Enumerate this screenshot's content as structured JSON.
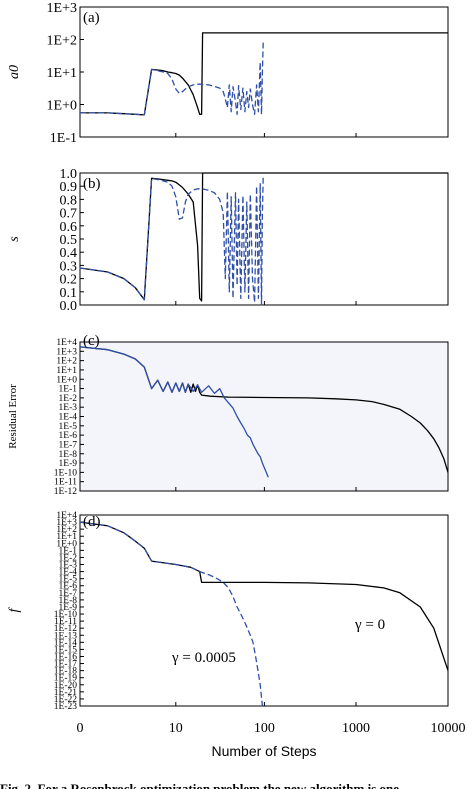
{
  "colors": {
    "black_series": "#000000",
    "blue_series": "#2f4fa8",
    "c_background": "#f4f5fb"
  },
  "caption": "Fig. 2.  For a Rosenbrock optimization problem the new algorithm is one",
  "chart_data": [
    {
      "type": "line",
      "panel_label": "(a)",
      "ylabel": "a0",
      "yscale": "log",
      "yticks": [
        "1E+3",
        "1E+2",
        "1E+1",
        "1E+0",
        "1E-1"
      ],
      "ylim": [
        0.1,
        1000
      ],
      "xscale": "log1p",
      "xlim": [
        0,
        10000
      ],
      "series": [
        {
          "color": "black",
          "dash": "solid",
          "x": [
            0,
            1,
            2,
            3,
            4,
            5,
            6,
            7,
            8,
            9,
            10,
            11,
            12,
            14,
            16,
            18,
            19,
            20,
            20.5,
            30,
            60,
            100,
            300,
            1000,
            3000,
            10000
          ],
          "y": [
            0.55,
            0.55,
            0.52,
            0.5,
            0.48,
            12,
            11.5,
            11,
            10,
            9.5,
            9,
            8,
            6.5,
            4,
            2,
            0.8,
            0.5,
            0.5,
            160,
            160,
            160,
            160,
            160,
            160,
            160,
            160
          ]
        },
        {
          "color": "blue",
          "dash": "dashed",
          "x": [
            0,
            1,
            2,
            3,
            4,
            5,
            6,
            7,
            8,
            9,
            10,
            11,
            12,
            13,
            14,
            16,
            18,
            20,
            24,
            28,
            32,
            35,
            37,
            39,
            41,
            43,
            45,
            48,
            50,
            52,
            55,
            58,
            61,
            64,
            67,
            70,
            74,
            78,
            82,
            86,
            90,
            93,
            95,
            97
          ],
          "y": [
            0.55,
            0.55,
            0.52,
            0.5,
            0.48,
            12,
            11,
            10,
            9,
            6,
            3,
            2.2,
            2.5,
            3,
            3.5,
            4,
            4.2,
            4.2,
            4,
            3.6,
            3.2,
            2.5,
            1.5,
            0.8,
            4,
            0.6,
            3.5,
            1.2,
            0.5,
            3.8,
            0.7,
            3.2,
            0.6,
            2.5,
            0.8,
            3,
            1,
            0.5,
            4,
            0.6,
            20,
            0.5,
            10,
            80
          ]
        }
      ]
    },
    {
      "type": "line",
      "panel_label": "(b)",
      "ylabel": "s",
      "yticks": [
        "1.0",
        "0.9",
        "0.8",
        "0.7",
        "0.6",
        "0.5",
        "0.4",
        "0.3",
        "0.2",
        "0.1",
        "0.0"
      ],
      "ylim": [
        0,
        1
      ],
      "xscale": "log1p",
      "xlim": [
        0,
        10000
      ],
      "series": [
        {
          "color": "black",
          "dash": "solid",
          "x": [
            0,
            1,
            2,
            3,
            4,
            5,
            6,
            7,
            8,
            9,
            10,
            11,
            12,
            14,
            16,
            18,
            19,
            20,
            20.5,
            100,
            1000,
            10000
          ],
          "y": [
            0.28,
            0.25,
            0.2,
            0.13,
            0.04,
            0.96,
            0.955,
            0.95,
            0.945,
            0.94,
            0.93,
            0.91,
            0.89,
            0.84,
            0.78,
            0.45,
            0.05,
            0.03,
            1.0,
            1.0,
            1.0,
            1.0
          ]
        },
        {
          "color": "blue",
          "dash": "dashed",
          "x": [
            0,
            1,
            2,
            3,
            4,
            5,
            6,
            7,
            8,
            9,
            10,
            11,
            12,
            13,
            14,
            16,
            18,
            20,
            24,
            28,
            32,
            35,
            37,
            39,
            41,
            43,
            45,
            48,
            50,
            52,
            55,
            58,
            61,
            64,
            67,
            70,
            74,
            78,
            82,
            86,
            90,
            93,
            95,
            97
          ],
          "y": [
            0.28,
            0.25,
            0.2,
            0.13,
            0.04,
            0.96,
            0.95,
            0.94,
            0.93,
            0.9,
            0.82,
            0.65,
            0.66,
            0.78,
            0.84,
            0.87,
            0.88,
            0.88,
            0.87,
            0.85,
            0.8,
            0.7,
            0.2,
            0.86,
            0.1,
            0.82,
            0.05,
            0.85,
            0.15,
            0.8,
            0.05,
            0.83,
            0.1,
            0.78,
            0.05,
            0.84,
            0.2,
            0.02,
            0.9,
            0.05,
            0.92,
            0.0,
            0.7,
            0.97
          ]
        }
      ]
    },
    {
      "type": "line",
      "panel_label": "(c)",
      "ylabel": "Residual Error",
      "yscale": "log",
      "yticks": [
        "1E+4",
        "1E+3",
        "1E+2",
        "1E+1",
        "1E+0",
        "1E-1",
        "1E-2",
        "1E-3",
        "1E-4",
        "1E-5",
        "1E-6",
        "1E-7",
        "1E-8",
        "1E-9",
        "1E-10",
        "1E-11",
        "1E-12"
      ],
      "ylim": [
        1e-12,
        10000
      ],
      "xscale": "log1p",
      "xlim": [
        0,
        10000
      ],
      "series": [
        {
          "color": "black",
          "dash": "solid",
          "x": [
            0,
            1,
            2,
            3,
            4,
            5,
            6,
            7,
            8,
            9,
            10,
            11,
            12,
            13,
            14,
            15,
            16,
            17,
            18,
            19,
            20,
            25,
            40,
            100,
            300,
            600,
            1000,
            1500,
            2000,
            3000,
            4000,
            5000,
            6000,
            7000,
            8000,
            9000,
            10000
          ],
          "y": [
            3000,
            1500,
            500,
            150,
            20,
            0.1,
            0.8,
            0.05,
            0.5,
            0.04,
            0.4,
            0.05,
            0.4,
            0.04,
            0.3,
            0.04,
            0.3,
            0.05,
            0.25,
            0.04,
            0.02,
            0.015,
            0.012,
            0.011,
            0.01,
            0.008,
            0.006,
            0.004,
            0.002,
            0.0006,
            0.0001,
            2e-05,
            3e-06,
            4e-07,
            4e-08,
            3e-09,
            1e-10
          ]
        },
        {
          "color": "blue",
          "dash": "solid",
          "x": [
            0,
            1,
            2,
            3,
            4,
            5,
            6,
            7,
            8,
            9,
            10,
            11,
            12,
            13,
            14,
            16,
            18,
            20,
            24,
            28,
            32,
            36,
            40,
            45,
            50,
            55,
            60,
            65,
            70,
            75,
            80,
            85,
            90,
            95,
            100,
            105,
            110
          ],
          "y": [
            3000,
            1500,
            500,
            150,
            20,
            0.1,
            0.8,
            0.05,
            0.5,
            0.04,
            0.4,
            0.05,
            0.4,
            0.04,
            0.3,
            0.05,
            0.25,
            0.04,
            0.2,
            0.03,
            0.1,
            0.01,
            0.003,
            0.0008,
            0.0001,
            2e-05,
            5e-06,
            1e-06,
            5e-07,
            1e-07,
            3e-08,
            1e-08,
            5e-09,
            1e-09,
            3e-10,
            1e-10,
            3e-11
          ]
        }
      ]
    },
    {
      "type": "line",
      "panel_label": "(d)",
      "ylabel": "f",
      "yscale": "log",
      "yticks": [
        "1E+4",
        "1E+3",
        "1E+2",
        "1E+1",
        "1E+0",
        "1E-1",
        "1E-2",
        "1E-3",
        "1E-4",
        "1E-5",
        "1E-6",
        "1E-7",
        "1E-8",
        "1E-9",
        "1E-10",
        "1E-11",
        "1E-12",
        "1E-13",
        "1E-14",
        "1E-15",
        "1E-16",
        "1E-17",
        "1E-18",
        "1E-19",
        "1E-20",
        "1E-21",
        "1E-22",
        "1E-23"
      ],
      "ylim": [
        1e-23,
        10000
      ],
      "xscale": "log1p",
      "xlim": [
        0,
        10000
      ],
      "xticks": [
        "0",
        "10",
        "100",
        "1000",
        "10000"
      ],
      "xlabel": "Number of Steps",
      "annotations": [
        "γ = 0.0005",
        "γ = 0"
      ],
      "series": [
        {
          "color": "black",
          "dash": "solid",
          "name": "γ = 0",
          "x": [
            0,
            1,
            2,
            3,
            4,
            5,
            10,
            15,
            19,
            20,
            30,
            50,
            100,
            300,
            1000,
            2000,
            3000,
            5000,
            7000,
            10000
          ],
          "y": [
            1000,
            300,
            30,
            2,
            0.2,
            0.003,
            0.001,
            0.0004,
            0.0001,
            3e-06,
            3e-06,
            3e-06,
            3e-06,
            2.5e-06,
            1.5e-06,
            5e-07,
            1e-07,
            1e-09,
            1e-12,
            1e-18
          ]
        },
        {
          "color": "blue",
          "dash": "dashed",
          "name": "γ = 0.0005",
          "x": [
            0,
            1,
            2,
            3,
            4,
            5,
            10,
            15,
            19,
            25,
            30,
            35,
            40,
            45,
            50,
            55,
            60,
            65,
            70,
            75,
            80,
            85,
            90,
            95
          ],
          "y": [
            1000,
            300,
            30,
            2,
            0.2,
            0.003,
            0.001,
            0.0004,
            0.0001,
            3e-05,
            1e-05,
            3e-06,
            5e-07,
            3e-08,
            1e-09,
            1e-10,
            1e-11,
            1e-12,
            1e-13,
            1e-14,
            1e-16,
            1e-18,
            1e-20,
            1e-23
          ]
        }
      ]
    }
  ]
}
